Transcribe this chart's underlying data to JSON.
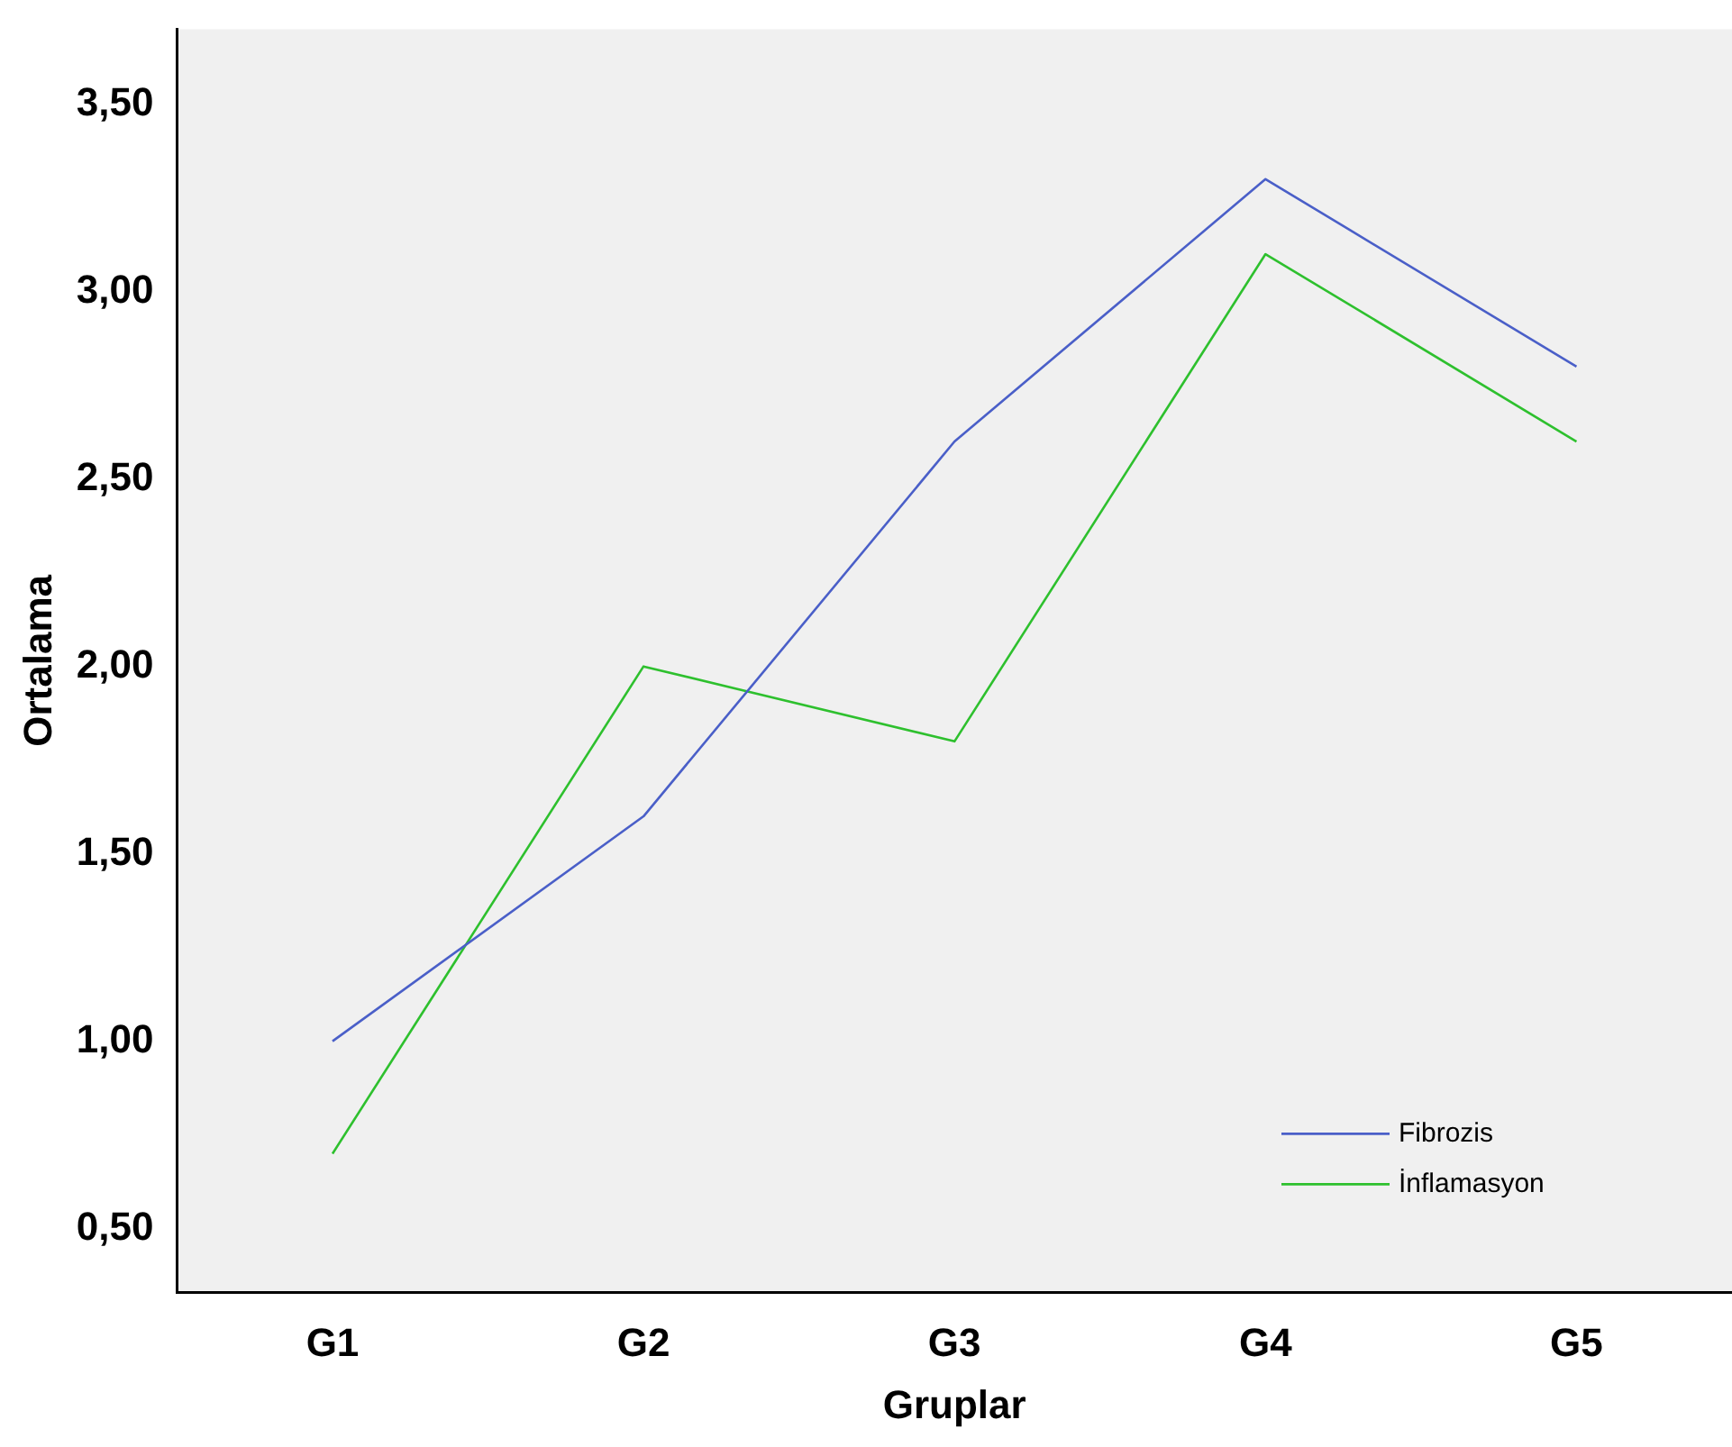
{
  "chart_data": {
    "type": "line",
    "xlabel": "Gruplar",
    "ylabel": "Ortalama",
    "categories": [
      "G1",
      "G2",
      "G3",
      "G4",
      "G5"
    ],
    "series": [
      {
        "name": "Fibrozis",
        "color": "#4a5fc8",
        "values": [
          1.0,
          1.6,
          2.6,
          3.3,
          2.8
        ]
      },
      {
        "name": "İnflamasyon",
        "color": "#2ec02e",
        "values": [
          0.7,
          2.0,
          1.8,
          3.1,
          2.6
        ]
      }
    ],
    "ylim": [
      0.33,
      3.7
    ],
    "yticks": [
      {
        "value": 0.5,
        "label": "0,50"
      },
      {
        "value": 1.0,
        "label": "1,00"
      },
      {
        "value": 1.5,
        "label": "1,50"
      },
      {
        "value": 2.0,
        "label": "2,00"
      },
      {
        "value": 2.5,
        "label": "2,50"
      },
      {
        "value": 3.0,
        "label": "3,00"
      },
      {
        "value": 3.5,
        "label": "3,50"
      }
    ],
    "grid": false,
    "legend": "bottom right",
    "marker": "none",
    "line_style": "solid"
  }
}
